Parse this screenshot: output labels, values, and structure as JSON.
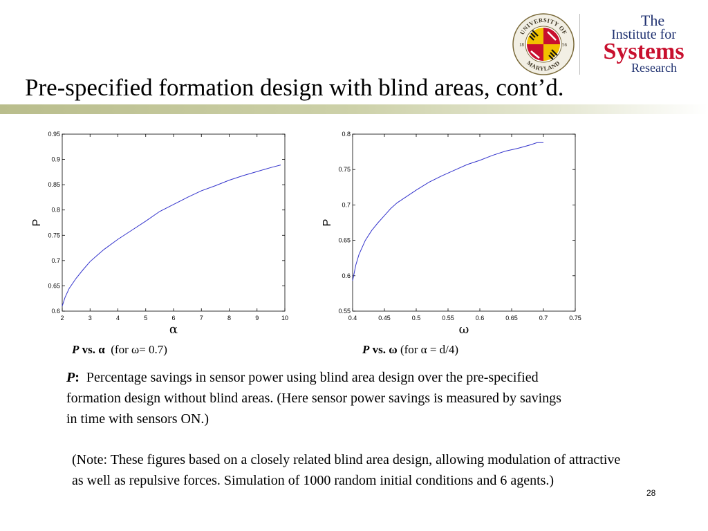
{
  "slide": {
    "title": "Pre-specified formation design with blind areas, cont’d.",
    "page_number": "28"
  },
  "logos": {
    "seal": {
      "icon": "university-of-maryland-seal-icon",
      "text_top": "UNIVERSITY OF",
      "text_bottom": "MARYLAND",
      "year_left": "18",
      "year_right": "56"
    },
    "isr": {
      "line1": "The",
      "line2": "Institute for",
      "line3": "Systems",
      "line4": "Research",
      "primary_color": "#1d2f6f",
      "accent_color": "#c8102e"
    }
  },
  "captions": {
    "left": {
      "var": "P",
      "vs": " vs. ",
      "sym": "α",
      "cond": "(for ω= 0.7)"
    },
    "right": {
      "var": "P",
      "vs": " vs. ",
      "sym": "ω",
      "cond": "(for α = d/4)"
    }
  },
  "description": {
    "term": "P",
    "colon": ":",
    "text": "Percentage savings in sensor power using blind area design over the pre-specified formation design without blind areas. (Here sensor power savings is measured by savings in time with sensors ON.)"
  },
  "note": "(Note: These figures based on a closely related blind area design, allowing modulation of attractive as well as repulsive forces. Simulation of 1000 random initial conditions and 6 agents.)",
  "chart_data": [
    {
      "type": "line",
      "xlabel": "α",
      "ylabel": "P",
      "xlim": [
        2,
        10
      ],
      "ylim": [
        0.6,
        0.95
      ],
      "xticks": [
        "2",
        "3",
        "4",
        "5",
        "6",
        "7",
        "8",
        "9",
        "10"
      ],
      "yticks": [
        "0.6",
        "0.65",
        "0.7",
        "0.75",
        "0.8",
        "0.85",
        "0.9",
        "0.95"
      ],
      "grid": false,
      "line_color": "#3333cc",
      "series": [
        {
          "x": [
            2.0,
            2.1,
            2.25,
            2.5,
            2.75,
            3.0,
            3.25,
            3.5,
            4.0,
            4.5,
            5.0,
            5.5,
            6.0,
            6.5,
            7.0,
            7.5,
            8.0,
            8.5,
            9.0,
            9.5,
            9.85
          ],
          "y": [
            0.61,
            0.627,
            0.645,
            0.665,
            0.682,
            0.698,
            0.71,
            0.722,
            0.742,
            0.76,
            0.778,
            0.797,
            0.811,
            0.825,
            0.838,
            0.848,
            0.859,
            0.868,
            0.876,
            0.884,
            0.889
          ]
        }
      ]
    },
    {
      "type": "line",
      "xlabel": "ω",
      "ylabel": "P",
      "xlim": [
        0.4,
        0.75
      ],
      "ylim": [
        0.55,
        0.8
      ],
      "xticks": [
        "0.4",
        "0.45",
        "0.5",
        "0.55",
        "0.6",
        "0.65",
        "0.7",
        "0.75"
      ],
      "yticks": [
        "0.55",
        "0.6",
        "0.65",
        "0.7",
        "0.75",
        "0.8"
      ],
      "grid": false,
      "line_color": "#3333cc",
      "series": [
        {
          "x": [
            0.4,
            0.405,
            0.41,
            0.42,
            0.43,
            0.44,
            0.45,
            0.46,
            0.47,
            0.48,
            0.5,
            0.52,
            0.54,
            0.56,
            0.58,
            0.6,
            0.62,
            0.64,
            0.66,
            0.68,
            0.69,
            0.7
          ],
          "y": [
            0.593,
            0.615,
            0.63,
            0.65,
            0.664,
            0.675,
            0.685,
            0.695,
            0.703,
            0.709,
            0.721,
            0.732,
            0.741,
            0.749,
            0.757,
            0.763,
            0.77,
            0.776,
            0.78,
            0.785,
            0.788,
            0.788
          ]
        }
      ]
    }
  ]
}
